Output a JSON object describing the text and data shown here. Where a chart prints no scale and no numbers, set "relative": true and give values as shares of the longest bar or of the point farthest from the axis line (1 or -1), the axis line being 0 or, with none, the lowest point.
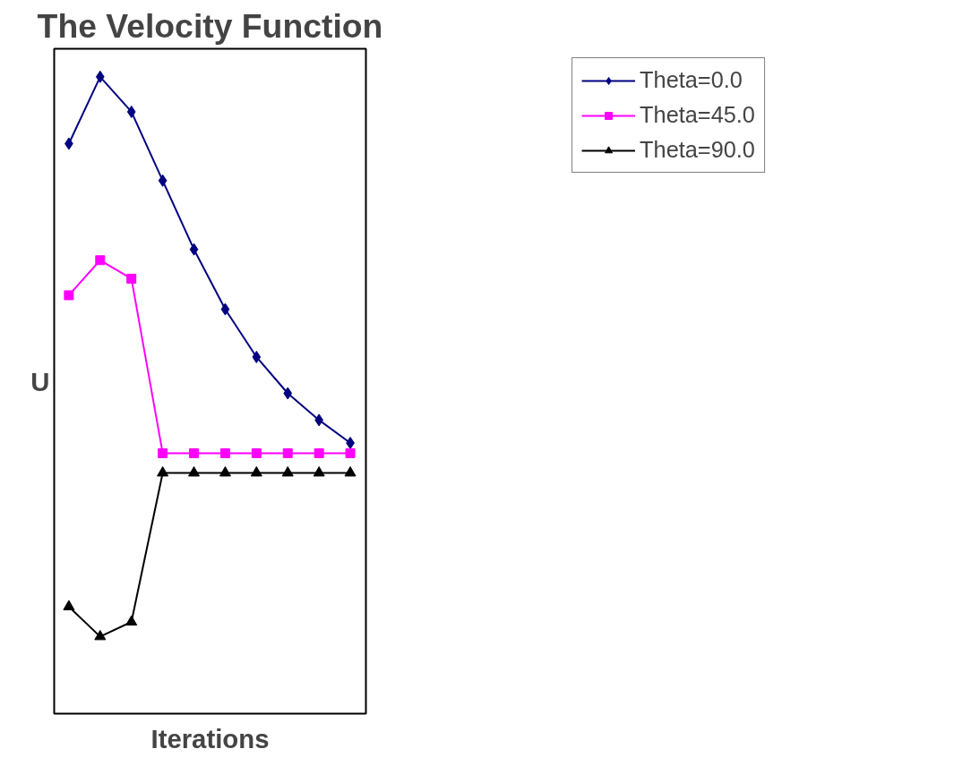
{
  "chart_data": {
    "type": "line",
    "title": "The Velocity Function",
    "xlabel": "Iterations",
    "ylabel": "U",
    "relative": true,
    "tick_labels": false,
    "grid": false,
    "legend": "top right",
    "line_style": "solid",
    "categories": [
      null,
      null,
      null,
      null,
      null,
      null,
      null,
      null,
      null,
      null
    ],
    "series": [
      {
        "name": "Theta=0.0",
        "color": "#000080",
        "marker": "diamond",
        "values": [
          0.895,
          1.0,
          0.945,
          0.837,
          0.729,
          0.635,
          0.56,
          0.503,
          0.461,
          0.425
        ]
      },
      {
        "name": "Theta=45.0",
        "color": "#ff00ff",
        "marker": "square",
        "values": [
          0.657,
          0.712,
          0.683,
          0.409,
          0.409,
          0.409,
          0.409,
          0.409,
          0.409,
          0.409
        ]
      },
      {
        "name": "Theta=90.0",
        "color": "#000000",
        "marker": "triangle",
        "values": [
          0.168,
          0.121,
          0.144,
          0.378,
          0.378,
          0.378,
          0.378,
          0.378,
          0.378,
          0.378
        ]
      }
    ]
  }
}
